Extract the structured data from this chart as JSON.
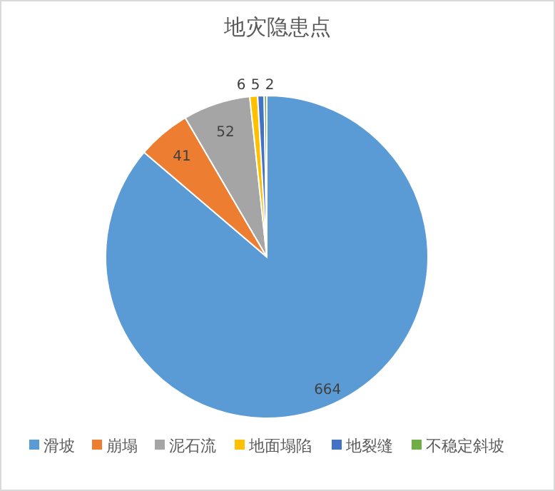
{
  "chart_data": {
    "type": "pie",
    "title": "地灾隐患点",
    "categories": [
      "滑坡",
      "崩塌",
      "泥石流",
      "地面塌陷",
      "地裂缝",
      "不稳定斜坡"
    ],
    "values": [
      664,
      41,
      52,
      6,
      5,
      2
    ],
    "colors": [
      "#5b9bd5",
      "#ed7d31",
      "#a5a5a5",
      "#ffc000",
      "#4472c4",
      "#70ad47"
    ],
    "data_labels": true,
    "legend": "bottom"
  }
}
